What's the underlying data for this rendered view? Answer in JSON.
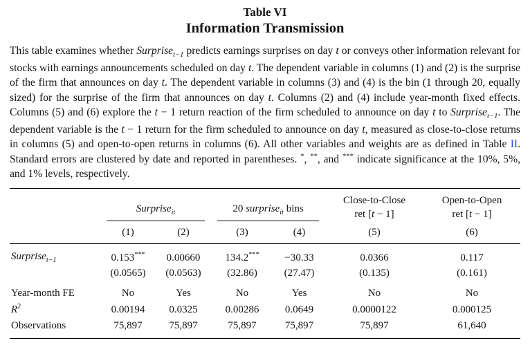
{
  "title": "Table VI",
  "subtitle": "Information Transmission",
  "colors": {
    "link": "#2b4bc8",
    "text": "#141414",
    "rule": "#000000"
  },
  "caption_segments": [
    {
      "t": "This table examines whether "
    },
    {
      "t": "Surprise",
      "s": "i"
    },
    {
      "t": "t−1",
      "s": "sub"
    },
    {
      "t": " predicts earnings surprises on day "
    },
    {
      "t": "t",
      "s": "i"
    },
    {
      "t": " or conveys other information relevant for stocks with earnings announcements scheduled on day "
    },
    {
      "t": "t",
      "s": "i"
    },
    {
      "t": ". The dependent variable in columns (1) and (2) is the surprise of the firm that announces on day "
    },
    {
      "t": "t",
      "s": "i"
    },
    {
      "t": ". The dependent variable in columns (3) and (4) is the bin (1 through 20, equally sized) for the surprise of the firm that announces on day "
    },
    {
      "t": "t",
      "s": "i"
    },
    {
      "t": ". Columns (2) and (4) include year-month fixed effects. Columns (5) and (6) explore the "
    },
    {
      "t": "t",
      "s": "i"
    },
    {
      "t": " − 1 return reaction of the firm scheduled to announce on day "
    },
    {
      "t": "t",
      "s": "i"
    },
    {
      "t": " to "
    },
    {
      "t": "Surprise",
      "s": "i"
    },
    {
      "t": "t−1",
      "s": "sub"
    },
    {
      "t": ". The dependent variable is the "
    },
    {
      "t": "t",
      "s": "i"
    },
    {
      "t": " − 1 return for the firm scheduled to announce on day "
    },
    {
      "t": "t",
      "s": "i"
    },
    {
      "t": ", measured as close-to-close returns in columns (5) and open-to-open returns in columns (6). All other variables and weights are as defined in Table "
    },
    {
      "t": "II",
      "s": "link",
      "n": "table-ii-link"
    },
    {
      "t": ". Standard errors are clustered by date and reported in parentheses. "
    },
    {
      "t": "*",
      "s": "sup"
    },
    {
      "t": ", "
    },
    {
      "t": "**",
      "s": "sup"
    },
    {
      "t": ", and "
    },
    {
      "t": "***",
      "s": "sup"
    },
    {
      "t": " indicate significance at the 10%, 5%, and 1% levels, respectively."
    }
  ],
  "table": {
    "groups": [
      {
        "segments": [
          {
            "t": "Surprise",
            "s": "i"
          },
          {
            "t": "it",
            "s": "sub"
          }
        ]
      },
      {
        "segments": [
          {
            "t": "20 "
          },
          {
            "t": "surprise",
            "s": "i"
          },
          {
            "t": "it",
            "s": "sub"
          },
          {
            "t": " bins"
          }
        ]
      },
      {
        "line1": "Close-to-Close",
        "line2": [
          {
            "t": "ret ["
          },
          {
            "t": "t",
            "s": "i"
          },
          {
            "t": " − 1]"
          }
        ]
      },
      {
        "line1": "Open-to-Open",
        "line2": [
          {
            "t": "ret ["
          },
          {
            "t": "t",
            "s": "i"
          },
          {
            "t": " − 1]"
          }
        ]
      }
    ],
    "col_numbers": [
      "(1)",
      "(2)",
      "(3)",
      "(4)",
      "(5)",
      "(6)"
    ],
    "rows": {
      "coef": {
        "label_segments": [
          {
            "t": "Surprise",
            "s": "i"
          },
          {
            "t": "t−1",
            "s": "sub"
          }
        ],
        "values": [
          "0.153",
          "0.00660",
          "134.2",
          "−30.33",
          "0.0366",
          "0.117"
        ],
        "stars": [
          "***",
          "",
          "***",
          "",
          "",
          ""
        ]
      },
      "se": {
        "values": [
          "(0.0565)",
          "(0.0563)",
          "(32.86)",
          "(27.47)",
          "(0.135)",
          "(0.161)"
        ]
      },
      "fe": {
        "label": "Year-month FE",
        "values": [
          "No",
          "Yes",
          "No",
          "Yes",
          "No",
          "No"
        ]
      },
      "r2": {
        "label_segments": [
          {
            "t": "R",
            "s": "i"
          },
          {
            "t": "2",
            "s": "sup"
          }
        ],
        "values": [
          "0.00194",
          "0.0325",
          "0.00286",
          "0.0649",
          "0.0000122",
          "0.000125"
        ]
      },
      "obs": {
        "label": "Observations",
        "values": [
          "75,897",
          "75,897",
          "75,897",
          "75,897",
          "75,897",
          "61,640"
        ]
      }
    }
  }
}
